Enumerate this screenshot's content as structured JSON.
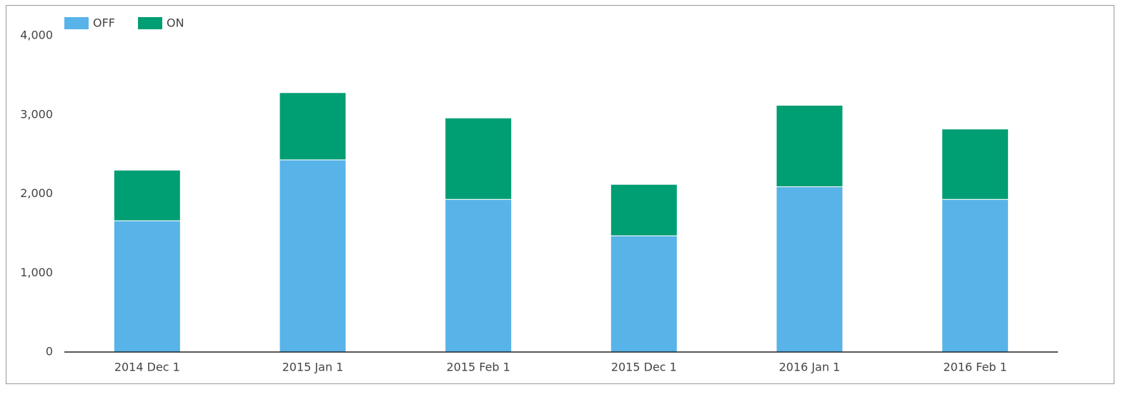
{
  "chart_data": {
    "type": "bar",
    "stacked": true,
    "categories": [
      "2014 Dec 1",
      "2015 Jan 1",
      "2015 Feb 1",
      "2015 Dec 1",
      "2016 Jan 1",
      "2016 Feb 1"
    ],
    "series": [
      {
        "name": "OFF",
        "color": "#58b3e8",
        "values": [
          1660,
          2430,
          1930,
          1470,
          2090,
          1930
        ]
      },
      {
        "name": "ON",
        "color": "#009e73",
        "values": [
          640,
          850,
          1030,
          650,
          1030,
          890
        ]
      }
    ],
    "ylim": [
      0,
      4000
    ],
    "yticks": [
      0,
      {
        "value": 1000,
        "label": "1,000"
      },
      {
        "value": 2000,
        "label": "2,000"
      },
      {
        "value": 3000,
        "label": "3,000"
      },
      {
        "value": 4000,
        "label": "4,000"
      }
    ],
    "grid": false,
    "legend": "top-left"
  }
}
